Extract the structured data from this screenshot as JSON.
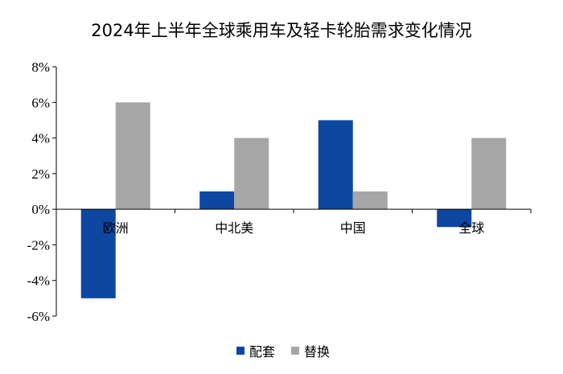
{
  "title": "2024年上半年全球乘用车及轻卡轮胎需求变化情况",
  "chart_data": {
    "type": "bar",
    "title": "2024年上半年全球乘用车及轻卡轮胎需求变化情况",
    "categories": [
      "欧洲",
      "中北美",
      "中国",
      "全球"
    ],
    "series": [
      {
        "name": "配套",
        "values": [
          -5,
          1,
          5,
          -1
        ],
        "color": "#0d47a1"
      },
      {
        "name": "替换",
        "values": [
          6,
          4,
          1,
          4
        ],
        "color": "#a6a6a6"
      }
    ],
    "ylim": [
      -6,
      8
    ],
    "yticks": [
      8,
      6,
      4,
      2,
      0,
      -2,
      -4,
      -6
    ],
    "ytick_labels": [
      "8%",
      "6%",
      "4%",
      "2%",
      "0%",
      "-2%",
      "-4%",
      "-6%"
    ],
    "xlabel": "",
    "ylabel": "",
    "legend_position": "bottom",
    "grid": false
  }
}
